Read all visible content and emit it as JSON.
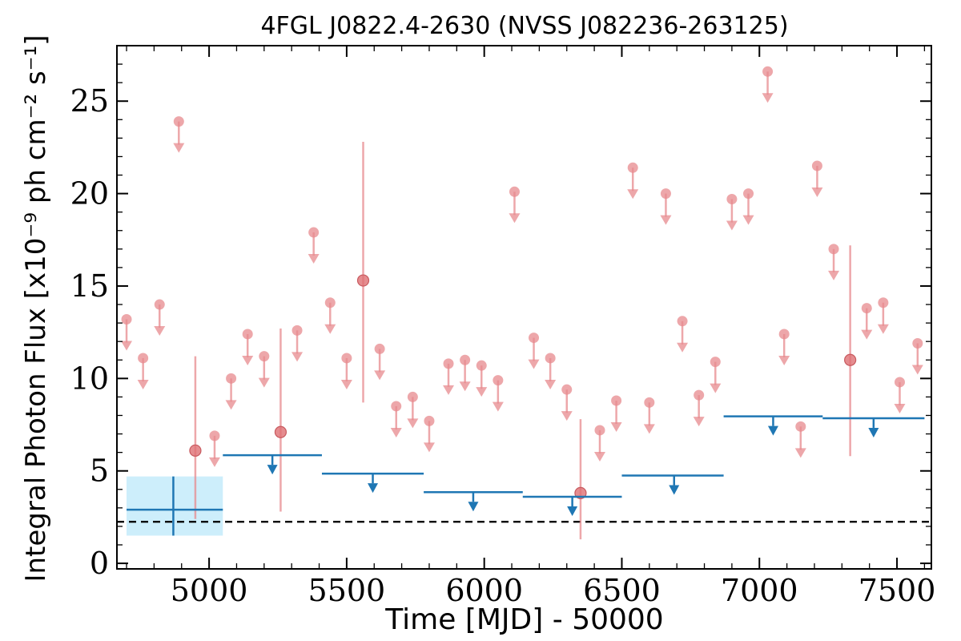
{
  "chart_data": {
    "type": "scatter",
    "title": "4FGL J0822.4-2630 (NVSS J082236-263125)",
    "xlabel": "Time [MJD] - 50000",
    "ylabel": "Integral Photon Flux [x10⁻⁹ ph cm⁻² s⁻¹]",
    "xlim": [
      4665,
      7625
    ],
    "ylim": [
      -0.3,
      28
    ],
    "x_ticks": [
      "5000",
      "5500",
      "6000",
      "6500",
      "7000",
      "7500"
    ],
    "y_ticks": [
      "0",
      "5",
      "10",
      "15",
      "20",
      "25"
    ],
    "colors": {
      "short_bin": "#e78a8e",
      "long_bin": "#1f77b4",
      "band_fill": "#cdeefb",
      "baseline": "#000000"
    },
    "series": [
      {
        "kind": "upper_limits",
        "x": [
          4700,
          4760,
          4820,
          4890,
          5020,
          5080,
          5140,
          5200,
          5320,
          5380,
          5440,
          5500,
          5620,
          5680,
          5740,
          5800,
          5870,
          5930,
          5990,
          6050,
          6110,
          6180,
          6240,
          6300,
          6420,
          6480,
          6540,
          6600,
          6660,
          6720,
          6780,
          6840,
          6900,
          6960,
          7030,
          7090,
          7150,
          7210,
          7270,
          7390,
          7450,
          7510,
          7575
        ],
        "y": [
          13.2,
          11.1,
          14.0,
          23.9,
          6.9,
          10.0,
          12.4,
          11.2,
          12.6,
          17.9,
          14.1,
          11.1,
          11.6,
          8.5,
          9.0,
          7.7,
          10.8,
          11.0,
          10.7,
          9.9,
          20.1,
          12.2,
          11.1,
          9.4,
          7.2,
          8.8,
          21.4,
          8.7,
          20.0,
          13.1,
          9.1,
          10.9,
          19.7,
          20.0,
          26.6,
          12.4,
          7.4,
          21.5,
          17.0,
          13.8,
          14.1,
          9.8,
          11.9
        ]
      },
      {
        "kind": "detections",
        "x": [
          4950,
          5260,
          5560,
          6350,
          7330
        ],
        "y": [
          6.1,
          7.1,
          15.3,
          3.8,
          11.0
        ],
        "y_low": [
          2.4,
          2.8,
          8.7,
          1.3,
          5.8
        ],
        "y_high": [
          11.2,
          12.7,
          22.8,
          7.8,
          17.2
        ]
      },
      {
        "kind": "long_bin_detection",
        "x_start": 4700,
        "x_end": 5050,
        "x": 4870,
        "y": 2.9,
        "y_low": 1.5,
        "y_high": 4.7
      },
      {
        "kind": "long_bin_upper_limits",
        "bins": [
          {
            "x_start": 5050,
            "x_end": 5410,
            "x": 5230,
            "y": 5.85
          },
          {
            "x_start": 5410,
            "x_end": 5780,
            "x": 5595,
            "y": 4.85
          },
          {
            "x_start": 5780,
            "x_end": 6140,
            "x": 5960,
            "y": 3.85
          },
          {
            "x_start": 6140,
            "x_end": 6500,
            "x": 6320,
            "y": 3.6
          },
          {
            "x_start": 6500,
            "x_end": 6870,
            "x": 6690,
            "y": 4.75
          },
          {
            "x_start": 6870,
            "x_end": 7230,
            "x": 7050,
            "y": 7.95
          },
          {
            "x_start": 7230,
            "x_end": 7600,
            "x": 7415,
            "y": 7.85
          }
        ]
      },
      {
        "kind": "baseline",
        "y": 2.25
      }
    ]
  }
}
